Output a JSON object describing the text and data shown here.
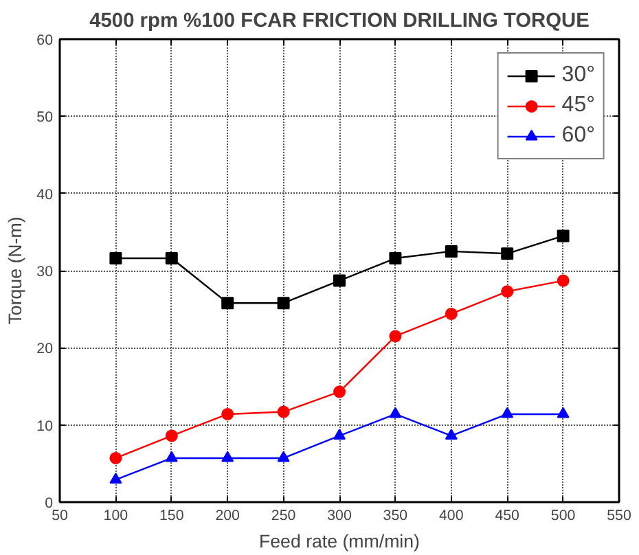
{
  "chart_data": {
    "type": "line",
    "title": "4500 rpm %100 FCAR FRICTION DRILLING TORQUE",
    "xlabel": "Feed rate (mm/min)",
    "ylabel": "Torque (N-m)",
    "x": [
      100,
      150,
      200,
      250,
      300,
      350,
      400,
      450,
      500
    ],
    "series": [
      {
        "name": "30°",
        "color": "#000000",
        "marker": "square",
        "values": [
          31.6,
          31.6,
          25.8,
          25.8,
          28.7,
          31.6,
          32.5,
          32.2,
          34.5
        ]
      },
      {
        "name": "45°",
        "color": "#ff0000",
        "marker": "circle",
        "values": [
          5.7,
          8.6,
          11.4,
          11.7,
          14.3,
          21.5,
          24.4,
          27.3,
          28.7
        ]
      },
      {
        "name": "60°",
        "color": "#0000ff",
        "marker": "triangle",
        "values": [
          2.9,
          5.7,
          5.7,
          5.7,
          8.6,
          11.4,
          8.6,
          11.4,
          11.4
        ]
      }
    ],
    "xlim": [
      50,
      550
    ],
    "xticks": [
      50,
      100,
      150,
      200,
      250,
      300,
      350,
      400,
      450,
      500,
      550
    ],
    "ylim": [
      0,
      60
    ],
    "yticks": [
      0,
      10,
      20,
      30,
      40,
      50,
      60
    ],
    "grid": true,
    "legend": "top right",
    "line_style": "solid"
  }
}
